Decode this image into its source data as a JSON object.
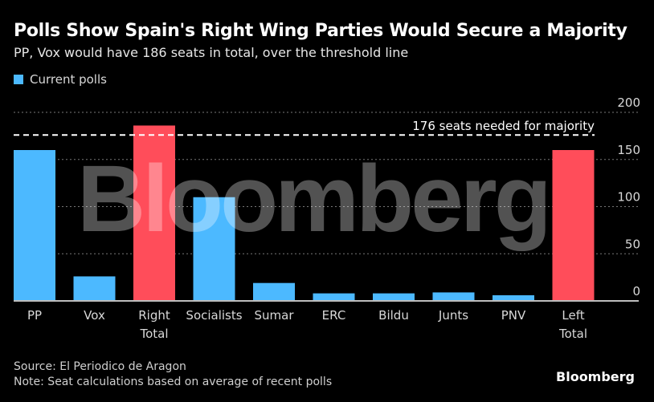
{
  "header": {
    "title": "Polls Show Spain's Right Wing Parties Would Secure a Majority",
    "subtitle": "PP, Vox would have 186 seats in total, over the threshold line"
  },
  "legend": {
    "label": "Current polls",
    "color": "#4cb9ff"
  },
  "footer": {
    "source": "Source: El Periodico de Aragon",
    "note": "Note: Seat calculations based on average of recent polls",
    "brand": "Bloomberg"
  },
  "watermark": "Bloomberg",
  "colors": {
    "blue": "#4cb9ff",
    "red": "#ff4d5a",
    "background": "#000000",
    "grid": "#777777"
  },
  "chart_data": {
    "type": "bar",
    "title": "Polls Show Spain's Right Wing Parties Would Secure a Majority",
    "subtitle": "PP, Vox would have 186 seats in total, over the threshold line",
    "xlabel": "",
    "ylabel": "",
    "ylim": [
      0,
      200
    ],
    "yticks": [
      0,
      50,
      100,
      150,
      200
    ],
    "grid": true,
    "y_axis_side": "right",
    "legend_position": "top-left",
    "categories": [
      {
        "label": [
          "PP"
        ],
        "value": 160,
        "kind": "party"
      },
      {
        "label": [
          "Vox"
        ],
        "value": 26,
        "kind": "party"
      },
      {
        "label": [
          "Right",
          "Total"
        ],
        "value": 186,
        "kind": "total"
      },
      {
        "label": [
          "Socialists"
        ],
        "value": 110,
        "kind": "party"
      },
      {
        "label": [
          "Sumar"
        ],
        "value": 19,
        "kind": "party"
      },
      {
        "label": [
          "ERC"
        ],
        "value": 8,
        "kind": "party"
      },
      {
        "label": [
          "Bildu"
        ],
        "value": 8,
        "kind": "party"
      },
      {
        "label": [
          "Junts"
        ],
        "value": 9,
        "kind": "party"
      },
      {
        "label": [
          "PNV"
        ],
        "value": 6,
        "kind": "party"
      },
      {
        "label": [
          "Left",
          "Total"
        ],
        "value": 160,
        "kind": "total"
      }
    ],
    "series": [
      {
        "name": "Current polls"
      }
    ],
    "threshold": {
      "value": 176,
      "label": "176 seats needed for majority"
    }
  }
}
